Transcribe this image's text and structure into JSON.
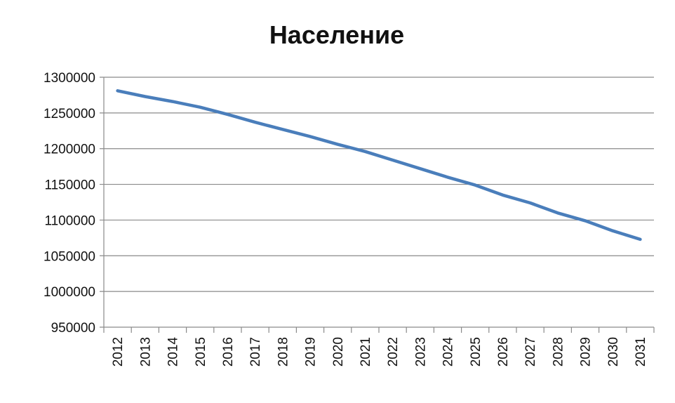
{
  "chart_data": {
    "type": "line",
    "title": "Население",
    "xlabel": "",
    "ylabel": "",
    "ylim": [
      950000,
      1300000
    ],
    "yticks": [
      "950000",
      "1000000",
      "1050000",
      "1100000",
      "1150000",
      "1200000",
      "1250000",
      "1300000"
    ],
    "categories": [
      "2012",
      "2013",
      "2014",
      "2015",
      "2016",
      "2017",
      "2018",
      "2019",
      "2020",
      "2021",
      "2022",
      "2023",
      "2024",
      "2025",
      "2026",
      "2027",
      "2028",
      "2029",
      "2030",
      "2031"
    ],
    "series": [
      {
        "values": [
          1281000,
          1273000,
          1266000,
          1258000,
          1248000,
          1237000,
          1227000,
          1217000,
          1206000,
          1196000,
          1184000,
          1172000,
          1160000,
          1149000,
          1135000,
          1124000,
          1110000,
          1099000,
          1085000,
          1073000
        ]
      }
    ],
    "grid": true,
    "legend": "none",
    "colors": {
      "series": "#4a7ebb",
      "grid": "#8a8a8a",
      "text": "#111111"
    }
  }
}
